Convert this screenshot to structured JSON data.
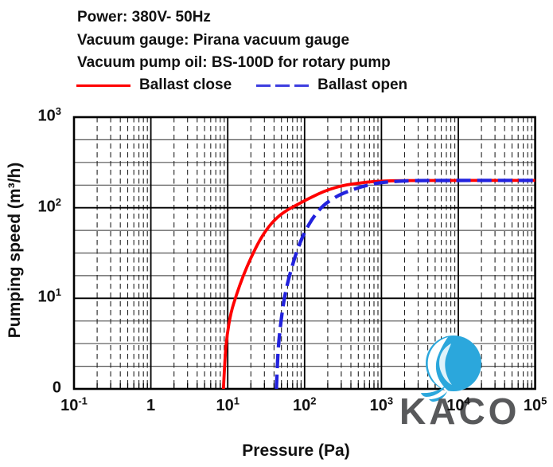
{
  "header": {
    "lines": [
      "Power:  380V- 50Hz",
      "Vacuum gauge:  Pirana vacuum gauge",
      "Vacuum pump oil:  BS-100D for rotary pump"
    ]
  },
  "legend": [
    {
      "label": "Ballast close",
      "color": "#ff0000",
      "style": "solid"
    },
    {
      "label": "Ballast open",
      "color": "#3d3de0",
      "style": "dashed"
    }
  ],
  "watermark": {
    "text": "KACO",
    "text_color": "#58595b",
    "logo_color": "#2ba7dc"
  },
  "chart_data": {
    "type": "line",
    "title": "",
    "xlabel": "Pressure (Pa)",
    "ylabel": "Pumping speed (m³/h)",
    "x_scale": "log",
    "y_scale": "log",
    "xlim": [
      0.1,
      100000
    ],
    "ylim": [
      1,
      1000
    ],
    "grid": "log graph paper, dashed vertical minors, solid horizontal minors",
    "legend_position": "top",
    "x_ticks": [
      {
        "text": "10",
        "sup": "-1"
      },
      {
        "text": "1",
        "sup": ""
      },
      {
        "text": "10",
        "sup": "1"
      },
      {
        "text": "10",
        "sup": "2"
      },
      {
        "text": "10",
        "sup": "3"
      },
      {
        "text": "10",
        "sup": "4"
      },
      {
        "text": "10",
        "sup": "5"
      }
    ],
    "y_ticks": [
      {
        "text": "10",
        "sup": "3"
      },
      {
        "text": "10",
        "sup": "2"
      },
      {
        "text": "10",
        "sup": "1"
      },
      {
        "text": "0",
        "sup": ""
      }
    ],
    "series": [
      {
        "name": "Ballast close",
        "color": "#ff0000",
        "dash": null,
        "points": [
          [
            8.8,
            1
          ],
          [
            9.2,
            2.2
          ],
          [
            9.8,
            4
          ],
          [
            11,
            7
          ],
          [
            13,
            11
          ],
          [
            16,
            18
          ],
          [
            20,
            28
          ],
          [
            26,
            44
          ],
          [
            34,
            62
          ],
          [
            45,
            80
          ],
          [
            60,
            95
          ],
          [
            80,
            108
          ],
          [
            110,
            125
          ],
          [
            150,
            142
          ],
          [
            210,
            160
          ],
          [
            300,
            174
          ],
          [
            430,
            184
          ],
          [
            650,
            192
          ],
          [
            1000,
            197
          ],
          [
            2000,
            200
          ],
          [
            100000,
            200
          ]
        ]
      },
      {
        "name": "Ballast open",
        "color": "#2222dd",
        "dash": [
          18,
          8
        ],
        "points": [
          [
            43,
            1
          ],
          [
            44.5,
            2.2
          ],
          [
            47,
            4
          ],
          [
            52,
            8
          ],
          [
            58,
            13
          ],
          [
            66,
            20
          ],
          [
            76,
            30
          ],
          [
            90,
            44
          ],
          [
            105,
            58
          ],
          [
            125,
            75
          ],
          [
            150,
            92
          ],
          [
            180,
            108
          ],
          [
            220,
            122
          ],
          [
            280,
            138
          ],
          [
            370,
            152
          ],
          [
            500,
            166
          ],
          [
            700,
            180
          ],
          [
            1000,
            190
          ],
          [
            1600,
            196
          ],
          [
            3000,
            200
          ],
          [
            100000,
            200
          ]
        ]
      }
    ],
    "plateau_value_m3h": 200,
    "ultimate_pressure_ballast_close_Pa": 8.8,
    "ultimate_pressure_ballast_open_Pa": 43
  }
}
